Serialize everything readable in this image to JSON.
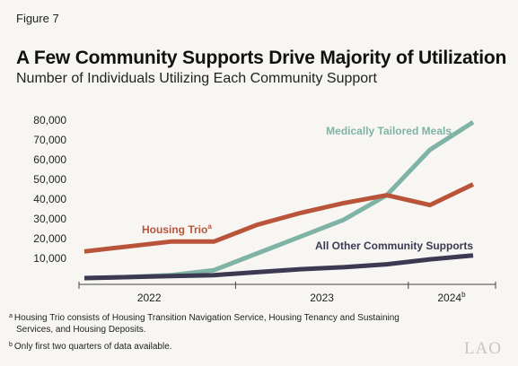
{
  "figure_label": "Figure 7",
  "title": "A Few Community Supports Drive Majority of Utilization",
  "subtitle": "Number of Individuals Utilizing Each Community Support",
  "notes": {
    "a_marker": "a",
    "a_text_line1": "Housing Trio consists of Housing Transition Navigation Service, Housing Tenancy and Sustaining",
    "a_text_line2": "Services, and Housing Deposits.",
    "b_marker": "b",
    "b_text": "Only first two quarters of data available."
  },
  "logo_text": "LAO",
  "colors": {
    "medically_tailored_meals": "#7fb3a6",
    "housing_trio": "#b9543a",
    "all_other": "#3b3a52",
    "axis": "#444444"
  },
  "chart_data": {
    "type": "line",
    "title": "A Few Community Supports Drive Majority of Utilization",
    "subtitle": "Number of Individuals Utilizing Each Community Support",
    "ylim": [
      0,
      80000
    ],
    "yticks": [
      10000,
      20000,
      30000,
      40000,
      50000,
      60000,
      70000,
      80000
    ],
    "ytick_labels": [
      "10,000",
      "20,000",
      "30,000",
      "40,000",
      "50,000",
      "60,000",
      "70,000",
      "80,000"
    ],
    "year_labels": [
      {
        "label": "2022",
        "center_quarter": 2.5
      },
      {
        "label": "2023",
        "center_quarter": 6.5
      },
      {
        "label": "2024",
        "center_quarter": 9.5,
        "footnote": "b"
      }
    ],
    "x": [
      1,
      2,
      3,
      4,
      5,
      6,
      7,
      8,
      9,
      10
    ],
    "series": [
      {
        "name": "Medically Tailored Meals",
        "values": [
          0,
          500,
          1500,
          4000,
          12500,
          21000,
          29500,
          42000,
          65000,
          79000
        ]
      },
      {
        "name": "Housing Trio",
        "footnote": "a",
        "values": [
          13500,
          16000,
          18500,
          18500,
          27000,
          33000,
          38000,
          42000,
          37000,
          47500
        ]
      },
      {
        "name": "All Other Community Supports",
        "values": [
          0,
          500,
          1000,
          1500,
          3000,
          4500,
          5500,
          7000,
          9500,
          11500
        ]
      }
    ],
    "grid": false,
    "legend": "inline labels"
  }
}
